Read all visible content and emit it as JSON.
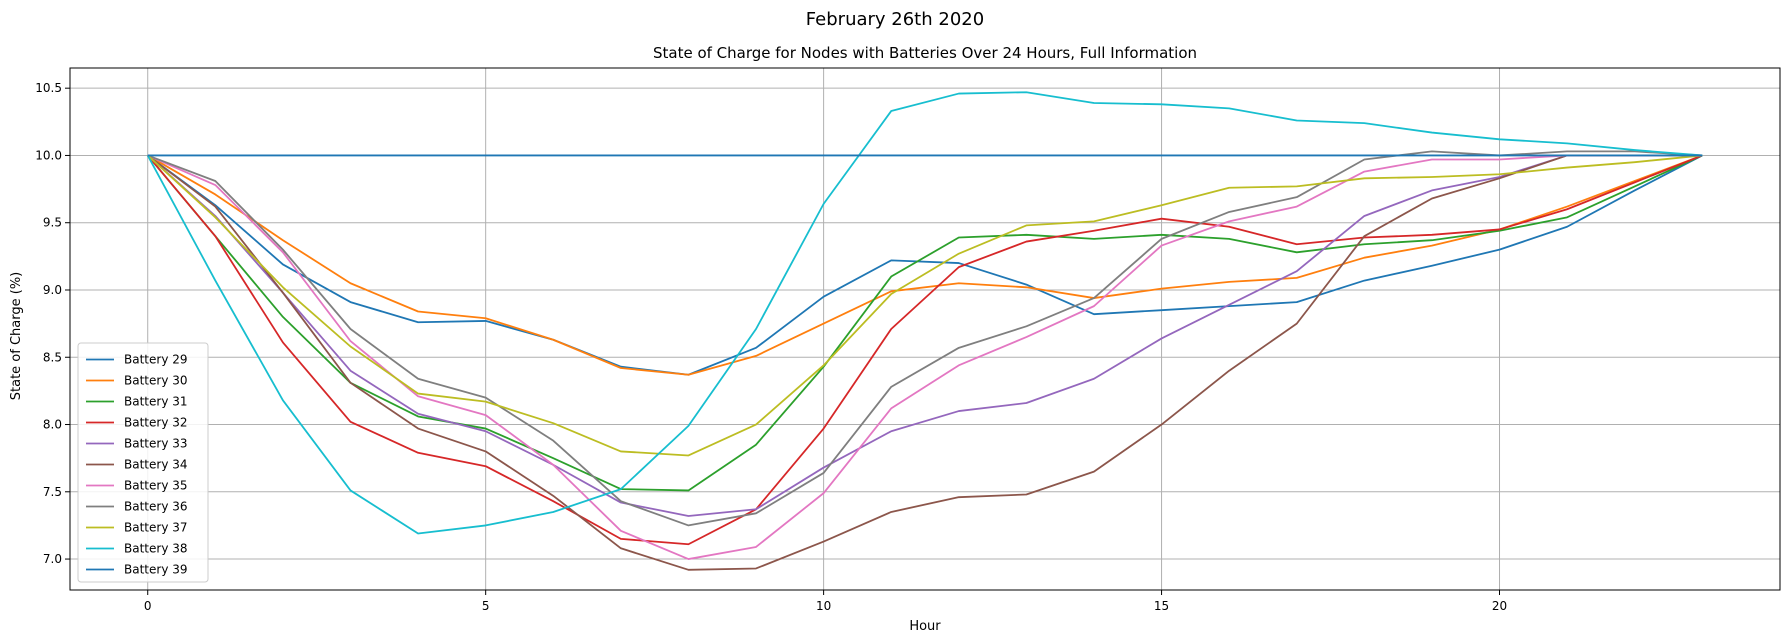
{
  "suptitle": "February 26th 2020",
  "chart_data": {
    "type": "line",
    "title": "State of Charge for Nodes with Batteries Over 24 Hours, Full Information",
    "xlabel": "Hour",
    "ylabel": "State of Charge (%)",
    "xlim": [
      -1.15,
      24.15
    ],
    "ylim": [
      6.77,
      10.65
    ],
    "xticks": [
      0,
      5,
      10,
      15,
      20
    ],
    "yticks": [
      7.0,
      7.5,
      8.0,
      8.5,
      9.0,
      9.5,
      10.0,
      10.5
    ],
    "grid": true,
    "legend_position": "lower-left",
    "x": [
      0,
      1,
      2,
      3,
      4,
      5,
      6,
      7,
      8,
      9,
      10,
      11,
      12,
      13,
      14,
      15,
      16,
      17,
      18,
      19,
      20,
      21,
      22,
      23
    ],
    "series": [
      {
        "name": "Battery 29",
        "color": "#1f77b4",
        "values": [
          10.0,
          9.63,
          9.19,
          8.91,
          8.76,
          8.77,
          8.63,
          8.43,
          8.37,
          8.57,
          8.95,
          9.22,
          9.2,
          9.04,
          8.82,
          8.85,
          8.88,
          8.91,
          9.07,
          9.18,
          9.3,
          9.47,
          9.74,
          10.0
        ]
      },
      {
        "name": "Battery 30",
        "color": "#ff7f0e",
        "values": [
          10.0,
          9.71,
          9.37,
          9.05,
          8.84,
          8.79,
          8.63,
          8.42,
          8.37,
          8.51,
          8.75,
          8.99,
          9.05,
          9.02,
          8.94,
          9.01,
          9.06,
          9.09,
          9.24,
          9.33,
          9.45,
          9.62,
          9.81,
          10.0
        ]
      },
      {
        "name": "Battery 31",
        "color": "#2ca02c",
        "values": [
          10.0,
          9.4,
          8.8,
          8.31,
          8.06,
          7.97,
          7.75,
          7.52,
          7.51,
          7.85,
          8.43,
          9.1,
          9.39,
          9.41,
          9.38,
          9.41,
          9.38,
          9.28,
          9.34,
          9.37,
          9.44,
          9.54,
          9.77,
          10.0
        ]
      },
      {
        "name": "Battery 32",
        "color": "#d62728",
        "values": [
          10.0,
          9.4,
          8.61,
          8.02,
          7.79,
          7.69,
          7.43,
          7.15,
          7.11,
          7.37,
          7.97,
          8.71,
          9.17,
          9.36,
          9.44,
          9.53,
          9.47,
          9.34,
          9.39,
          9.41,
          9.45,
          9.6,
          9.8,
          10.0
        ]
      },
      {
        "name": "Battery 33",
        "color": "#9467bd",
        "values": [
          10.0,
          9.55,
          8.98,
          8.4,
          8.08,
          7.95,
          7.7,
          7.42,
          7.32,
          7.37,
          7.68,
          7.95,
          8.1,
          8.16,
          8.34,
          8.64,
          8.89,
          9.14,
          9.55,
          9.74,
          9.84,
          10.0,
          10.0,
          10.0
        ]
      },
      {
        "name": "Battery 34",
        "color": "#8c564b",
        "values": [
          10.0,
          9.62,
          8.98,
          8.31,
          7.97,
          7.8,
          7.47,
          7.08,
          6.92,
          6.93,
          7.13,
          7.35,
          7.46,
          7.48,
          7.65,
          8.0,
          8.4,
          8.75,
          9.4,
          9.68,
          9.83,
          10.0,
          10.0,
          10.0
        ]
      },
      {
        "name": "Battery 35",
        "color": "#e377c2",
        "values": [
          10.0,
          9.78,
          9.28,
          8.62,
          8.21,
          8.07,
          7.7,
          7.21,
          7.0,
          7.09,
          7.49,
          8.12,
          8.44,
          8.65,
          8.88,
          9.33,
          9.51,
          9.62,
          9.88,
          9.97,
          9.97,
          10.0,
          10.0,
          10.0
        ]
      },
      {
        "name": "Battery 36",
        "color": "#7f7f7f",
        "values": [
          10.0,
          9.81,
          9.3,
          8.71,
          8.34,
          8.2,
          7.88,
          7.43,
          7.25,
          7.34,
          7.64,
          8.28,
          8.57,
          8.73,
          8.94,
          9.38,
          9.58,
          9.69,
          9.97,
          10.03,
          10.0,
          10.03,
          10.03,
          10.0
        ]
      },
      {
        "name": "Battery 37",
        "color": "#bcbd22",
        "values": [
          10.0,
          9.54,
          9.02,
          8.58,
          8.23,
          8.17,
          8.01,
          7.8,
          7.77,
          8.0,
          8.44,
          8.97,
          9.27,
          9.48,
          9.51,
          9.63,
          9.76,
          9.77,
          9.83,
          9.84,
          9.86,
          9.91,
          9.95,
          10.0
        ]
      },
      {
        "name": "Battery 38",
        "color": "#17becf",
        "values": [
          10.0,
          9.07,
          8.18,
          7.51,
          7.19,
          7.25,
          7.35,
          7.52,
          7.99,
          8.71,
          9.64,
          10.33,
          10.46,
          10.47,
          10.39,
          10.38,
          10.35,
          10.26,
          10.24,
          10.17,
          10.12,
          10.09,
          10.04,
          10.0
        ]
      },
      {
        "name": "Battery 39",
        "color": "#1f77b4",
        "values": [
          10.0,
          10.0,
          10.0,
          10.0,
          10.0,
          10.0,
          10.0,
          10.0,
          10.0,
          10.0,
          10.0,
          10.0,
          10.0,
          10.0,
          10.0,
          10.0,
          10.0,
          10.0,
          10.0,
          10.0,
          10.0,
          10.0,
          10.0,
          10.0
        ]
      }
    ]
  }
}
